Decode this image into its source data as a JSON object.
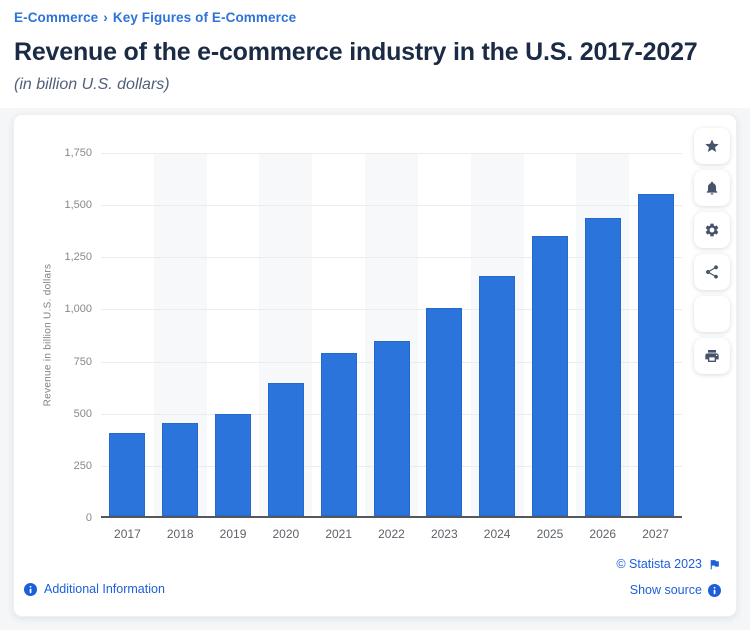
{
  "breadcrumb": {
    "items": [
      {
        "label": "E-Commerce"
      },
      {
        "label": "Key Figures of E-Commerce"
      }
    ],
    "separator": "›"
  },
  "header": {
    "title": "Revenue of the e-commerce industry in the U.S. 2017-2027",
    "subtitle": "(in billion U.S. dollars)"
  },
  "chart_data": {
    "type": "bar",
    "title": "Revenue of the e-commerce industry in the U.S. 2017-2027",
    "subtitle": "(in billion U.S. dollars)",
    "categories": [
      "2017",
      "2018",
      "2019",
      "2020",
      "2021",
      "2022",
      "2023",
      "2024",
      "2025",
      "2026",
      "2027"
    ],
    "values": [
      410,
      455,
      500,
      645,
      790,
      850,
      1005,
      1160,
      1350,
      1440,
      1555
    ],
    "xlabel": "",
    "ylabel": "Revenue in billion U.S. dollars",
    "ylim": [
      0,
      1750
    ],
    "ytick_step": 250,
    "ytick_labels": [
      "0",
      "250",
      "500",
      "750",
      "1,000",
      "1,250",
      "1,500",
      "1,750"
    ],
    "grid": true,
    "legend": false,
    "bar_color": "#2b74dc",
    "shaded_columns": [
      "2018",
      "2020",
      "2022",
      "2024",
      "2026"
    ],
    "band_color": "#f7f8f9"
  },
  "toolbar": {
    "buttons": [
      {
        "name": "favorite",
        "icon": "star-icon"
      },
      {
        "name": "notifications",
        "icon": "bell-icon"
      },
      {
        "name": "settings",
        "icon": "gear-icon"
      },
      {
        "name": "share",
        "icon": "share-icon"
      },
      {
        "name": "cite",
        "icon": "quote-icon"
      },
      {
        "name": "print",
        "icon": "printer-icon"
      }
    ]
  },
  "footer": {
    "additional_info": "Additional Information",
    "copyright": "© Statista 2023",
    "show_source": "Show source"
  },
  "colors": {
    "accent_blue": "#2e74d8",
    "bar_blue": "#2b74dc",
    "title_navy": "#1c2b45",
    "icon_slate": "#46536b",
    "link_blue": "#1d5fd9"
  }
}
